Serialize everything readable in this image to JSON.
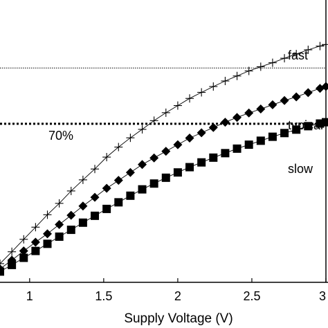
{
  "chart_data": {
    "type": "line",
    "xlabel": "Supply Voltage (V)",
    "ylabel": "",
    "title": "",
    "xlim": [
      0.8,
      3.0
    ],
    "ylim": [
      0,
      1
    ],
    "x_ticks": [
      1,
      1.5,
      2,
      2.5,
      3
    ],
    "x_tick_labels": [
      "1",
      "1.5",
      "2",
      "2.5",
      "3"
    ],
    "grid": false,
    "legend": "inline labels",
    "reference_lines": [
      {
        "label": "",
        "y": 0.795,
        "style": "dotted-thin"
      },
      {
        "label": "70%",
        "y": 0.584,
        "style": "dotted-thick"
      }
    ],
    "series": [
      {
        "name": "fast",
        "marker": "plus",
        "x": [
          0.8,
          0.88,
          0.96,
          1.04,
          1.12,
          1.2,
          1.28,
          1.36,
          1.44,
          1.52,
          1.6,
          1.68,
          1.76,
          1.84,
          1.92,
          2.0,
          2.08,
          2.16,
          2.24,
          2.32,
          2.4,
          2.48,
          2.56,
          2.64,
          2.72,
          2.8,
          2.88,
          2.96,
          3.0
        ],
        "values": [
          0.055,
          0.1,
          0.147,
          0.193,
          0.24,
          0.283,
          0.33,
          0.372,
          0.413,
          0.458,
          0.496,
          0.531,
          0.563,
          0.596,
          0.626,
          0.653,
          0.68,
          0.703,
          0.725,
          0.746,
          0.765,
          0.784,
          0.8,
          0.815,
          0.832,
          0.848,
          0.864,
          0.878,
          0.884
        ]
      },
      {
        "name": "typical",
        "marker": "diamond",
        "x": [
          0.8,
          0.88,
          0.96,
          1.04,
          1.12,
          1.2,
          1.28,
          1.36,
          1.44,
          1.52,
          1.6,
          1.68,
          1.76,
          1.84,
          1.92,
          2.0,
          2.08,
          2.16,
          2.24,
          2.32,
          2.4,
          2.48,
          2.56,
          2.64,
          2.72,
          2.8,
          2.88,
          2.96,
          3.0
        ],
        "values": [
          0.035,
          0.068,
          0.103,
          0.136,
          0.168,
          0.203,
          0.238,
          0.273,
          0.306,
          0.34,
          0.37,
          0.4,
          0.43,
          0.455,
          0.48,
          0.505,
          0.53,
          0.55,
          0.57,
          0.59,
          0.608,
          0.625,
          0.64,
          0.656,
          0.672,
          0.686,
          0.702,
          0.718,
          0.725
        ]
      },
      {
        "name": "slow",
        "marker": "square",
        "x": [
          0.8,
          0.88,
          0.96,
          1.04,
          1.12,
          1.2,
          1.28,
          1.36,
          1.44,
          1.52,
          1.6,
          1.68,
          1.76,
          1.84,
          1.92,
          2.0,
          2.08,
          2.16,
          2.24,
          2.32,
          2.4,
          2.48,
          2.56,
          2.64,
          2.72,
          2.8,
          2.88,
          2.96,
          3.0
        ],
        "values": [
          0.025,
          0.05,
          0.077,
          0.103,
          0.13,
          0.157,
          0.183,
          0.21,
          0.236,
          0.262,
          0.287,
          0.312,
          0.336,
          0.358,
          0.38,
          0.4,
          0.42,
          0.438,
          0.456,
          0.473,
          0.49,
          0.505,
          0.52,
          0.535,
          0.549,
          0.562,
          0.575,
          0.585,
          0.59
        ]
      }
    ]
  }
}
